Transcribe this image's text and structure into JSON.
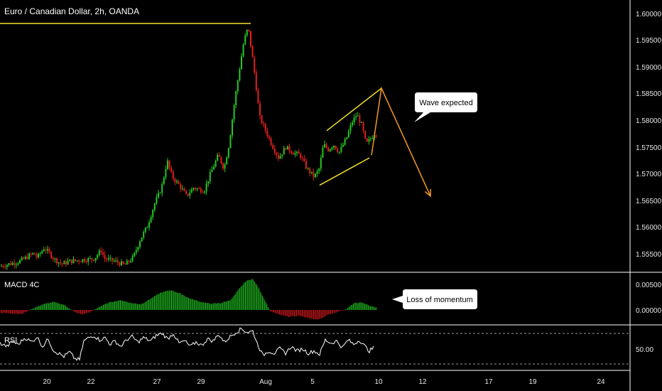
{
  "colors": {
    "background": "#000000",
    "up": "#26c826",
    "down": "#e0201c",
    "macd_pos": "#1fb51f",
    "macd_neg": "#c4161c",
    "rsi_line": "#ffffff",
    "trendline": "#f5e12d",
    "projection": "#f59a1d",
    "axis_line": "#ffffff",
    "dashed_level": "#9a9a9a"
  },
  "chart_title": "Euro / Canadian Dollar, 2h, OANDA",
  "price_axis": {
    "range": [
      1.5525,
      1.6025
    ],
    "ticks": [
      "1.60000",
      "1.59500",
      "1.59000",
      "1.58500",
      "1.58000",
      "1.57500",
      "1.57000",
      "1.56500",
      "1.56000",
      "1.55500"
    ]
  },
  "macd_pane": {
    "title": "MACD 4C",
    "range": [
      -0.0025,
      0.0065
    ],
    "ticks": [
      "0.00500",
      "0.00000"
    ]
  },
  "rsi_pane": {
    "title": "RSI",
    "range": [
      10,
      90
    ],
    "ticks": [
      "50.00"
    ],
    "levels": [
      70,
      30
    ]
  },
  "x_axis": {
    "ticks": [
      "20",
      "22",
      "27",
      "29",
      "Aug",
      "5",
      "10",
      "12",
      "17",
      "19",
      "24"
    ]
  },
  "annotations": {
    "wave_callout": "Wave expected",
    "momentum_callout": "Loss of momentum"
  },
  "chart_data": [
    {
      "type": "candlestick",
      "title": "Euro / Canadian Dollar, 2h, OANDA",
      "x_labels": [
        "20",
        "22",
        "27",
        "29",
        "Aug",
        "5",
        "10",
        "12",
        "17",
        "19",
        "24"
      ],
      "ylim": [
        1.5525,
        1.6025
      ],
      "price_path": [
        [
          0,
          1.5535
        ],
        [
          30,
          1.5545
        ],
        [
          50,
          1.556
        ],
        [
          55,
          1.5552
        ],
        [
          65,
          1.557
        ],
        [
          72,
          1.556
        ],
        [
          80,
          1.5548
        ],
        [
          90,
          1.554
        ],
        [
          100,
          1.5545
        ],
        [
          120,
          1.5548
        ],
        [
          135,
          1.555
        ],
        [
          145,
          1.5565
        ],
        [
          150,
          1.555
        ],
        [
          165,
          1.5545
        ],
        [
          178,
          1.5538
        ],
        [
          190,
          1.5552
        ],
        [
          200,
          1.5585
        ],
        [
          210,
          1.561
        ],
        [
          220,
          1.565
        ],
        [
          230,
          1.568
        ],
        [
          238,
          1.573
        ],
        [
          245,
          1.57
        ],
        [
          255,
          1.5685
        ],
        [
          265,
          1.5665
        ],
        [
          275,
          1.568
        ],
        [
          290,
          1.5675
        ],
        [
          300,
          1.571
        ],
        [
          310,
          1.574
        ],
        [
          318,
          1.5715
        ],
        [
          325,
          1.576
        ],
        [
          333,
          1.584
        ],
        [
          340,
          1.59
        ],
        [
          346,
          1.595
        ],
        [
          352,
          1.5975
        ],
        [
          358,
          1.592
        ],
        [
          362,
          1.588
        ],
        [
          368,
          1.581
        ],
        [
          375,
          1.579
        ],
        [
          385,
          1.576
        ],
        [
          395,
          1.5735
        ],
        [
          405,
          1.5755
        ],
        [
          415,
          1.5745
        ],
        [
          425,
          1.574
        ],
        [
          435,
          1.5715
        ],
        [
          445,
          1.57
        ],
        [
          452,
          1.5715
        ],
        [
          458,
          1.576
        ],
        [
          465,
          1.575
        ],
        [
          472,
          1.576
        ],
        [
          480,
          1.5745
        ],
        [
          490,
          1.577
        ],
        [
          498,
          1.58
        ],
        [
          505,
          1.5815
        ],
        [
          512,
          1.5795
        ],
        [
          518,
          1.576
        ],
        [
          524,
          1.577
        ],
        [
          530,
          1.578
        ]
      ],
      "annotations": {
        "resistance_line": {
          "x": [
            0,
            353
          ],
          "y": 1.5982
        },
        "channel_upper": {
          "x": [
            460,
            537
          ],
          "y": [
            1.5785,
            1.5863
          ]
        },
        "channel_lower": {
          "x": [
            450,
            520
          ],
          "y": [
            1.5685,
            1.5735
          ]
        },
        "projection": {
          "x": [
            523,
            537,
            606
          ],
          "y": [
            1.574,
            1.5863,
            1.5665
          ]
        }
      }
    },
    {
      "type": "bar",
      "title": "MACD 4C",
      "ylim": [
        -0.0025,
        0.0065
      ],
      "series": [
        {
          "values": [
            [
              0,
              -0.0005
            ],
            [
              30,
              -0.0007
            ],
            [
              45,
              0.0002
            ],
            [
              60,
              0.001
            ],
            [
              75,
              0.0014
            ],
            [
              90,
              0.0009
            ],
            [
              105,
              -0.0004
            ],
            [
              115,
              -0.0008
            ],
            [
              128,
              -0.0003
            ],
            [
              140,
              0.0006
            ],
            [
              155,
              0.0014
            ],
            [
              170,
              0.0017
            ],
            [
              185,
              0.0012
            ],
            [
              198,
              0.001
            ],
            [
              212,
              0.002
            ],
            [
              225,
              0.003
            ],
            [
              240,
              0.0035
            ],
            [
              255,
              0.0028
            ],
            [
              265,
              0.0021
            ],
            [
              280,
              0.0015
            ],
            [
              295,
              0.0011
            ],
            [
              310,
              0.0012
            ],
            [
              325,
              0.0018
            ],
            [
              335,
              0.0035
            ],
            [
              345,
              0.005
            ],
            [
              355,
              0.0055
            ],
            [
              363,
              0.004
            ],
            [
              372,
              0.0018
            ],
            [
              380,
              -0.0002
            ],
            [
              392,
              -0.0008
            ],
            [
              405,
              -0.0012
            ],
            [
              420,
              -0.001
            ],
            [
              435,
              -0.0015
            ],
            [
              448,
              -0.0017
            ],
            [
              460,
              -0.0009
            ],
            [
              475,
              -0.0003
            ],
            [
              488,
              0.0002
            ],
            [
              498,
              0.0012
            ],
            [
              510,
              0.0013
            ],
            [
              520,
              0.0007
            ],
            [
              530,
              0.0004
            ]
          ]
        }
      ]
    },
    {
      "type": "line",
      "title": "RSI",
      "ylim": [
        10,
        90
      ],
      "series": [
        {
          "values": [
            [
              0,
              58
            ],
            [
              10,
              52
            ],
            [
              18,
              62
            ],
            [
              25,
              55
            ],
            [
              35,
              68
            ],
            [
              45,
              60
            ],
            [
              52,
              70
            ],
            [
              60,
              52
            ],
            [
              68,
              66
            ],
            [
              75,
              45
            ],
            [
              82,
              40
            ],
            [
              90,
              34
            ],
            [
              98,
              42
            ],
            [
              105,
              30
            ],
            [
              112,
              28
            ],
            [
              118,
              62
            ],
            [
              125,
              68
            ],
            [
              132,
              72
            ],
            [
              140,
              64
            ],
            [
              148,
              68
            ],
            [
              155,
              56
            ],
            [
              162,
              62
            ],
            [
              170,
              52
            ],
            [
              178,
              64
            ],
            [
              186,
              70
            ],
            [
              194,
              60
            ],
            [
              202,
              68
            ],
            [
              212,
              62
            ],
            [
              220,
              72
            ],
            [
              228,
              76
            ],
            [
              236,
              66
            ],
            [
              244,
              76
            ],
            [
              252,
              58
            ],
            [
              260,
              62
            ],
            [
              268,
              52
            ],
            [
              276,
              60
            ],
            [
              284,
              54
            ],
            [
              292,
              66
            ],
            [
              300,
              62
            ],
            [
              308,
              74
            ],
            [
              316,
              60
            ],
            [
              324,
              70
            ],
            [
              332,
              78
            ],
            [
              340,
              84
            ],
            [
              348,
              78
            ],
            [
              356,
              80
            ],
            [
              362,
              58
            ],
            [
              370,
              36
            ],
            [
              378,
              44
            ],
            [
              386,
              40
            ],
            [
              394,
              48
            ],
            [
              402,
              40
            ],
            [
              410,
              52
            ],
            [
              418,
              44
            ],
            [
              426,
              48
            ],
            [
              434,
              40
            ],
            [
              442,
              44
            ],
            [
              450,
              38
            ],
            [
              458,
              64
            ],
            [
              466,
              58
            ],
            [
              474,
              62
            ],
            [
              482,
              50
            ],
            [
              490,
              64
            ],
            [
              498,
              56
            ],
            [
              506,
              64
            ],
            [
              514,
              52
            ],
            [
              520,
              44
            ],
            [
              526,
              50
            ]
          ]
        }
      ]
    }
  ]
}
